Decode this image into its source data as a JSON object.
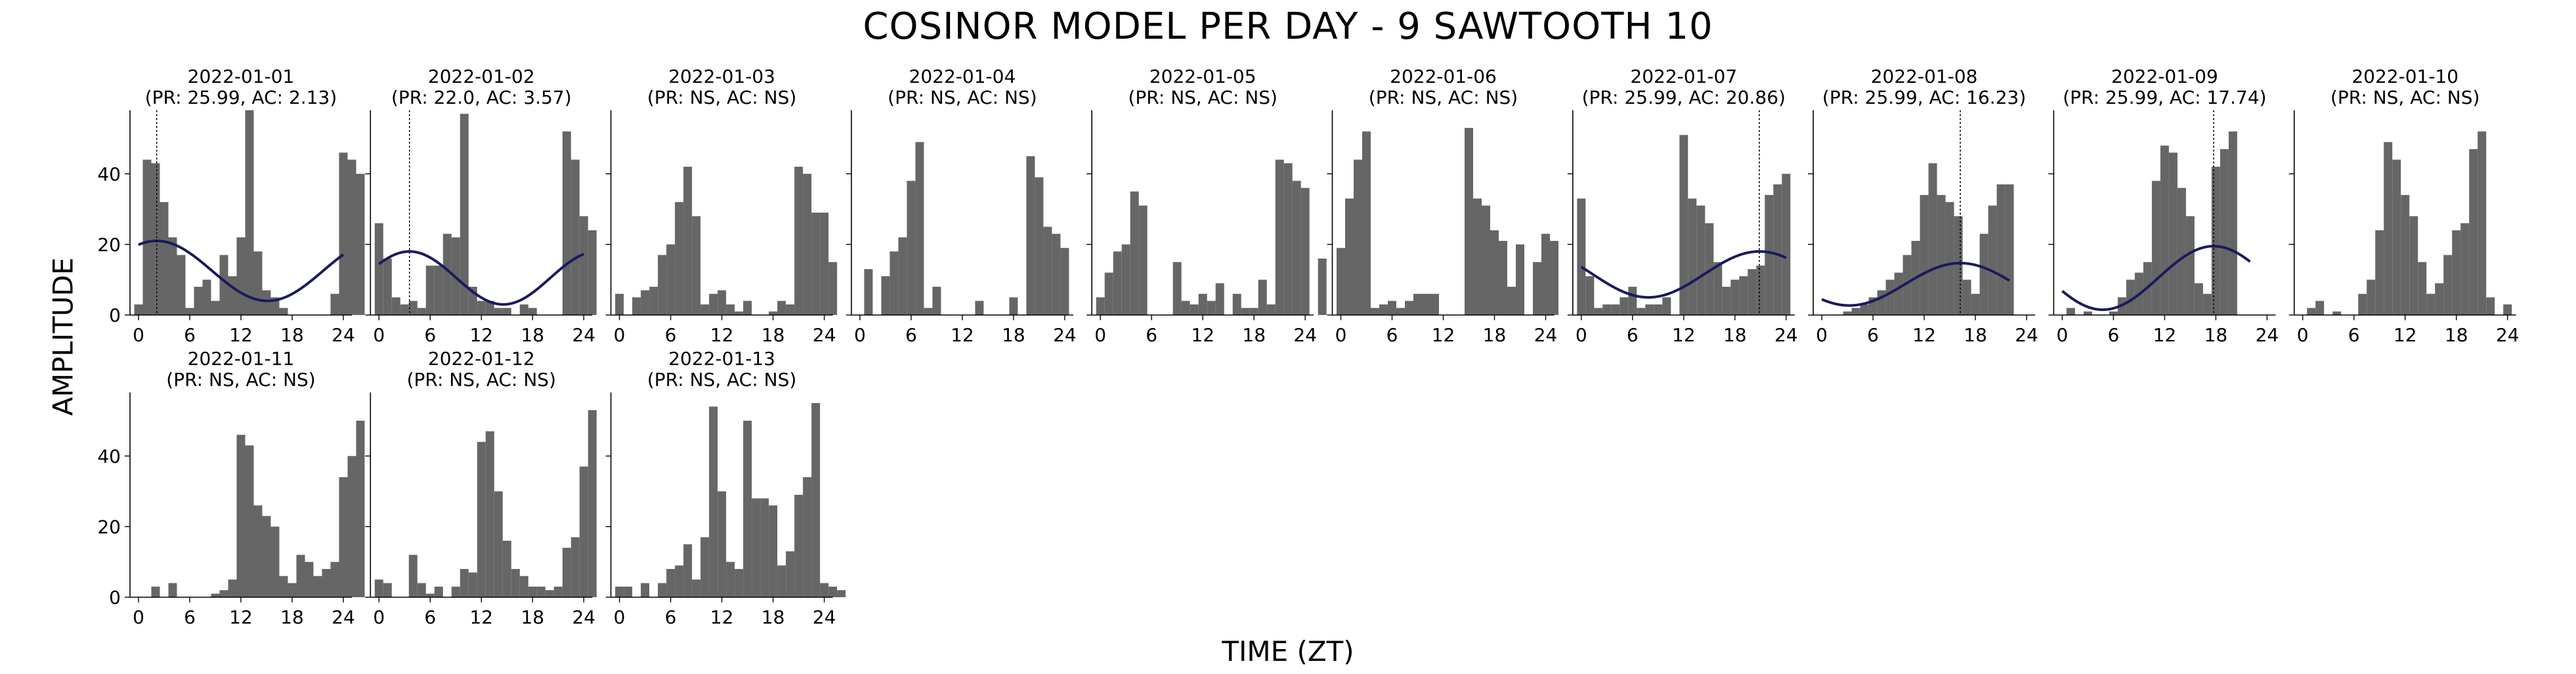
{
  "figure": {
    "title": "COSINOR MODEL PER DAY - 9 SAWTOOTH 10",
    "xlabel": "TIME (ZT)",
    "ylabel": "AMPLITUDE",
    "colors": {
      "bars": "#666666",
      "fit": "#1a1a5e",
      "axis": "#000000",
      "acrophase": "#000000"
    }
  },
  "chart_data": [
    {
      "type": "bar",
      "date": "2022-01-01",
      "title": "2022-01-01",
      "subtitle": "(PR: 25.99, AC: 2.13)",
      "xticks": [
        0,
        6,
        12,
        18,
        24
      ],
      "yticks": [
        0,
        20,
        40
      ],
      "ylim": [
        0,
        58
      ],
      "xlim": [
        -1,
        25
      ],
      "values": [
        3,
        44,
        43,
        32,
        22,
        17,
        2,
        8,
        10,
        4,
        17,
        11,
        22,
        58,
        18,
        7,
        5,
        2,
        0,
        0,
        0,
        0,
        0,
        6,
        46,
        44,
        40
      ],
      "fit": {
        "mesor": 12.5,
        "amplitude": 8.5,
        "period": 25.99,
        "acrophase": 2.13,
        "x_range": [
          0,
          24
        ]
      }
    },
    {
      "type": "bar",
      "date": "2022-01-02",
      "title": "2022-01-02",
      "subtitle": "(PR: 22.0, AC: 3.57)",
      "xticks": [
        0,
        6,
        12,
        18,
        24
      ],
      "yticks": [
        0,
        20,
        40
      ],
      "ylim": [
        0,
        58
      ],
      "xlim": [
        -1,
        25
      ],
      "values": [
        26,
        16,
        5,
        3,
        4,
        2,
        14,
        14,
        23,
        22,
        57,
        8,
        4,
        4,
        2,
        2,
        0,
        3,
        2,
        0,
        0,
        0,
        52,
        44,
        28,
        24,
        0
      ],
      "fit": {
        "mesor": 10.5,
        "amplitude": 7.5,
        "period": 22.0,
        "acrophase": 3.57,
        "x_range": [
          0,
          24
        ]
      }
    },
    {
      "type": "bar",
      "date": "2022-01-03",
      "title": "2022-01-03",
      "subtitle": "(PR: NS, AC: NS)",
      "xticks": [
        0,
        6,
        12,
        18,
        24
      ],
      "yticks": [
        0,
        20,
        40
      ],
      "ylim": [
        0,
        58
      ],
      "xlim": [
        -1,
        25
      ],
      "values": [
        6,
        0,
        5,
        7,
        8,
        17,
        20,
        32,
        42,
        28,
        3,
        6,
        7,
        3,
        1,
        4,
        0,
        0,
        1,
        4,
        3,
        42,
        40,
        29,
        29,
        15,
        0
      ],
      "fit": null
    },
    {
      "type": "bar",
      "date": "2022-01-04",
      "title": "2022-01-04",
      "subtitle": "(PR: NS, AC: NS)",
      "xticks": [
        0,
        6,
        12,
        18,
        24
      ],
      "yticks": [
        0,
        20,
        40
      ],
      "ylim": [
        0,
        58
      ],
      "xlim": [
        -1,
        25
      ],
      "values": [
        0,
        13,
        0,
        11,
        18,
        22,
        38,
        49,
        2,
        8,
        0,
        0,
        0,
        0,
        4,
        0,
        0,
        0,
        5,
        0,
        45,
        39,
        25,
        23,
        19,
        0,
        0
      ],
      "fit": null
    },
    {
      "type": "bar",
      "date": "2022-01-05",
      "title": "2022-01-05",
      "subtitle": "(PR: NS, AC: NS)",
      "xticks": [
        0,
        6,
        12,
        18,
        24
      ],
      "yticks": [
        0,
        20,
        40
      ],
      "ylim": [
        0,
        58
      ],
      "xlim": [
        -1,
        25
      ],
      "values": [
        5,
        12,
        18,
        20,
        35,
        31,
        0,
        0,
        0,
        15,
        4,
        3,
        6,
        4,
        9,
        0,
        6,
        2,
        2,
        10,
        3,
        44,
        43,
        38,
        36,
        0,
        16
      ],
      "fit": null
    },
    {
      "type": "bar",
      "date": "2022-01-06",
      "title": "2022-01-06",
      "subtitle": "(PR: NS, AC: NS)",
      "xticks": [
        0,
        6,
        12,
        18,
        24
      ],
      "yticks": [
        0,
        20,
        40
      ],
      "ylim": [
        0,
        58
      ],
      "xlim": [
        -1,
        25
      ],
      "values": [
        19,
        33,
        44,
        52,
        2,
        3,
        4,
        2,
        4,
        6,
        6,
        6,
        0,
        0,
        0,
        53,
        33,
        31,
        24,
        21,
        8,
        20,
        0,
        15,
        23,
        21,
        0
      ],
      "fit": null
    },
    {
      "type": "bar",
      "date": "2022-01-07",
      "title": "2022-01-07",
      "subtitle": "(PR: 25.99, AC: 20.86)",
      "xticks": [
        0,
        6,
        12,
        18,
        24
      ],
      "yticks": [
        0,
        20,
        40
      ],
      "ylim": [
        0,
        58
      ],
      "xlim": [
        -1,
        25
      ],
      "values": [
        33,
        11,
        2,
        3,
        3,
        5,
        8,
        2,
        3,
        3,
        5,
        0,
        51,
        33,
        31,
        26,
        15,
        8,
        10,
        11,
        13,
        14,
        34,
        37,
        40,
        0,
        0
      ],
      "fit": {
        "mesor": 11.5,
        "amplitude": 6.5,
        "period": 25.99,
        "acrophase": 20.86,
        "x_range": [
          0,
          24
        ]
      }
    },
    {
      "type": "bar",
      "date": "2022-01-08",
      "title": "2022-01-08",
      "subtitle": "(PR: 25.99, AC: 16.23)",
      "xticks": [
        0,
        6,
        12,
        18,
        24
      ],
      "yticks": [
        0,
        20,
        40
      ],
      "ylim": [
        0,
        58
      ],
      "xlim": [
        -1,
        25
      ],
      "values": [
        0,
        0,
        0,
        1,
        2,
        3,
        5,
        7,
        10,
        12,
        17,
        21,
        34,
        43,
        34,
        32,
        28,
        10,
        6,
        23,
        31,
        37,
        37,
        0,
        0,
        0,
        0
      ],
      "fit": {
        "mesor": 8.7,
        "amplitude": 6.0,
        "period": 25.99,
        "acrophase": 16.23,
        "x_range": [
          0,
          22
        ]
      }
    },
    {
      "type": "bar",
      "date": "2022-01-09",
      "title": "2022-01-09",
      "subtitle": "(PR: 25.99, AC: 17.74)",
      "xticks": [
        0,
        6,
        12,
        18,
        24
      ],
      "yticks": [
        0,
        20,
        40
      ],
      "ylim": [
        0,
        58
      ],
      "xlim": [
        -1,
        25
      ],
      "values": [
        0,
        2,
        0,
        1,
        0,
        0,
        1,
        5,
        10,
        12,
        15,
        38,
        48,
        46,
        36,
        28,
        9,
        6,
        42,
        47,
        52,
        0,
        0,
        0,
        0,
        0,
        0
      ],
      "fit": {
        "mesor": 10.5,
        "amplitude": 9.0,
        "period": 25.99,
        "acrophase": 17.74,
        "x_range": [
          0,
          22
        ]
      }
    },
    {
      "type": "bar",
      "date": "2022-01-10",
      "title": "2022-01-10",
      "subtitle": "(PR: NS, AC: NS)",
      "xticks": [
        0,
        6,
        12,
        18,
        24
      ],
      "yticks": [
        0,
        20,
        40
      ],
      "ylim": [
        0,
        58
      ],
      "xlim": [
        -1,
        25
      ],
      "values": [
        0,
        2,
        4,
        0,
        1,
        0,
        0,
        6,
        10,
        24,
        49,
        44,
        34,
        28,
        15,
        6,
        9,
        17,
        24,
        26,
        47,
        52,
        5,
        0,
        3,
        0,
        0
      ],
      "fit": null
    },
    {
      "type": "bar",
      "date": "2022-01-11",
      "title": "2022-01-11",
      "subtitle": "(PR: NS, AC: NS)",
      "xticks": [
        0,
        6,
        12,
        18,
        24
      ],
      "yticks": [
        0,
        20,
        40
      ],
      "ylim": [
        0,
        58
      ],
      "xlim": [
        -1,
        25
      ],
      "values": [
        0,
        0,
        3,
        0,
        4,
        0,
        0,
        0,
        0,
        1,
        2,
        5,
        46,
        43,
        26,
        23,
        20,
        6,
        4,
        12,
        10,
        6,
        8,
        10,
        34,
        40,
        50
      ],
      "fit": null
    },
    {
      "type": "bar",
      "date": "2022-01-12",
      "title": "2022-01-12",
      "subtitle": "(PR: NS, AC: NS)",
      "xticks": [
        0,
        6,
        12,
        18,
        24
      ],
      "yticks": [
        0,
        20,
        40
      ],
      "ylim": [
        0,
        58
      ],
      "xlim": [
        -1,
        25
      ],
      "values": [
        5,
        4,
        0,
        0,
        12,
        4,
        1,
        3,
        0,
        3,
        8,
        7,
        44,
        47,
        30,
        16,
        8,
        6,
        3,
        3,
        2,
        3,
        14,
        17,
        37,
        53,
        0
      ],
      "fit": null
    },
    {
      "type": "bar",
      "date": "2022-01-13",
      "title": "2022-01-13",
      "subtitle": "(PR: NS, AC: NS)",
      "xticks": [
        0,
        6,
        12,
        18,
        24
      ],
      "yticks": [
        0,
        20,
        40
      ],
      "ylim": [
        0,
        58
      ],
      "xlim": [
        -1,
        25
      ],
      "values": [
        3,
        3,
        0,
        4,
        0,
        4,
        8,
        9,
        15,
        5,
        17,
        54,
        30,
        10,
        8,
        50,
        28,
        28,
        26,
        9,
        13,
        29,
        34,
        55,
        4,
        3,
        2
      ],
      "fit": null
    }
  ]
}
